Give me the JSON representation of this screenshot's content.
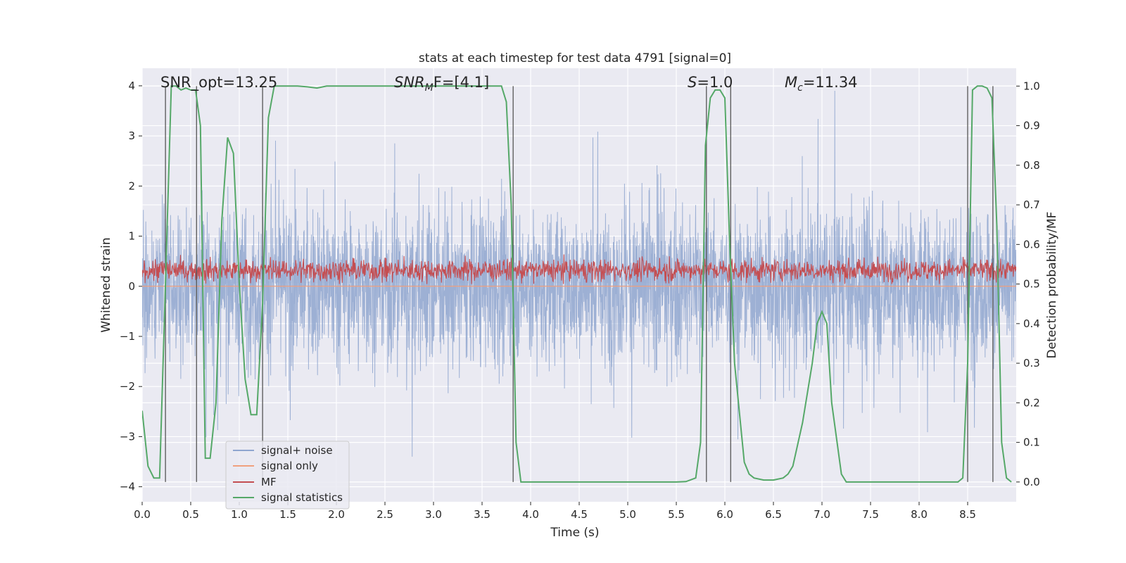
{
  "chart_data": {
    "type": "line",
    "title": "stats at each timestep for test data 4791 [signal=0]",
    "xlabel": "Time (s)",
    "ylabel_left": "Whitened strain",
    "ylabel_right": "Detection probability/MF",
    "xlim": [
      0.0,
      9.0
    ],
    "ylim_left": [
      -4.3,
      4.35
    ],
    "ylim_right": [
      -0.05,
      1.045
    ],
    "x_ticks": [
      "0.0",
      "0.5",
      "1.0",
      "1.5",
      "2.0",
      "2.5",
      "3.0",
      "3.5",
      "4.0",
      "4.5",
      "5.0",
      "5.5",
      "6.0",
      "6.5",
      "7.0",
      "7.5",
      "8.0",
      "8.5"
    ],
    "y_ticks_left": [
      "−4",
      "−3",
      "−2",
      "−1",
      "0",
      "1",
      "2",
      "3",
      "4"
    ],
    "y_ticks_right": [
      "0.0",
      "0.1",
      "0.2",
      "0.3",
      "0.4",
      "0.5",
      "0.6",
      "0.7",
      "0.8",
      "0.9",
      "1.0"
    ],
    "grid": true,
    "legend_position": "lower-left",
    "annotations": {
      "snr_opt": "SNR_opt=13.25",
      "snr_mf_prefix": "SNR",
      "snr_mf_sub": "M",
      "snr_mf_suffix": "F=[4.1]",
      "s_prefix": "S",
      "s_suffix": "=1.0",
      "mc_prefix": "M",
      "mc_sub": "c",
      "mc_suffix": "=11.34"
    },
    "series": [
      {
        "name": "signal+ noise",
        "color": "#8fa6cf",
        "kind": "noise",
        "amplitude_range": [
          -3.4,
          3.9
        ]
      },
      {
        "name": "signal only",
        "color": "#f0a07e",
        "kind": "flat",
        "values_approx": 0
      },
      {
        "name": "MF",
        "color": "#c44e52",
        "kind": "noise",
        "range_right_axis": [
          0.5,
          0.6
        ]
      },
      {
        "name": "signal statistics",
        "color": "#55a868",
        "axis": "right",
        "x": [
          0.0,
          0.06,
          0.12,
          0.18,
          0.24,
          0.3,
          0.35,
          0.4,
          0.45,
          0.5,
          0.55,
          0.6,
          0.65,
          0.7,
          0.76,
          0.82,
          0.88,
          0.94,
          1.0,
          1.06,
          1.12,
          1.18,
          1.24,
          1.3,
          1.36,
          1.42,
          1.5,
          1.6,
          1.7,
          1.8,
          1.9,
          2.0,
          2.2,
          2.5,
          3.0,
          3.5,
          3.7,
          3.75,
          3.8,
          3.85,
          3.9,
          3.95,
          4.0,
          4.5,
          5.0,
          5.5,
          5.6,
          5.7,
          5.75,
          5.8,
          5.85,
          5.9,
          5.95,
          6.0,
          6.05,
          6.1,
          6.2,
          6.25,
          6.3,
          6.4,
          6.5,
          6.6,
          6.65,
          6.7,
          6.8,
          6.9,
          6.95,
          7.0,
          7.05,
          7.1,
          7.2,
          7.25,
          7.4,
          7.6,
          8.0,
          8.4,
          8.45,
          8.5,
          8.55,
          8.6,
          8.65,
          8.7,
          8.75,
          8.8,
          8.85,
          8.9,
          8.95
        ],
        "values": [
          0.18,
          0.04,
          0.01,
          0.01,
          0.5,
          1.0,
          1.0,
          0.99,
          0.995,
          0.99,
          0.99,
          0.9,
          0.06,
          0.06,
          0.2,
          0.66,
          0.87,
          0.83,
          0.5,
          0.26,
          0.17,
          0.17,
          0.45,
          0.92,
          1.0,
          1.0,
          1.0,
          1.0,
          0.998,
          0.995,
          1.0,
          1.0,
          1.0,
          1.0,
          1.0,
          1.0,
          1.0,
          0.96,
          0.7,
          0.1,
          0.0,
          0.0,
          0.0,
          0.0,
          0.0,
          0.0,
          0.001,
          0.01,
          0.1,
          0.85,
          0.97,
          0.99,
          0.99,
          0.97,
          0.6,
          0.3,
          0.05,
          0.02,
          0.01,
          0.005,
          0.005,
          0.01,
          0.02,
          0.04,
          0.15,
          0.3,
          0.4,
          0.43,
          0.4,
          0.2,
          0.02,
          0.0,
          0.0,
          0.0,
          0.0,
          0.0,
          0.01,
          0.3,
          0.99,
          1.0,
          1.0,
          0.995,
          0.97,
          0.65,
          0.1,
          0.01,
          0.0
        ]
      }
    ],
    "vertical_markers": [
      0.24,
      0.56,
      1.24,
      3.82,
      5.81,
      6.06,
      8.5,
      8.76
    ]
  }
}
